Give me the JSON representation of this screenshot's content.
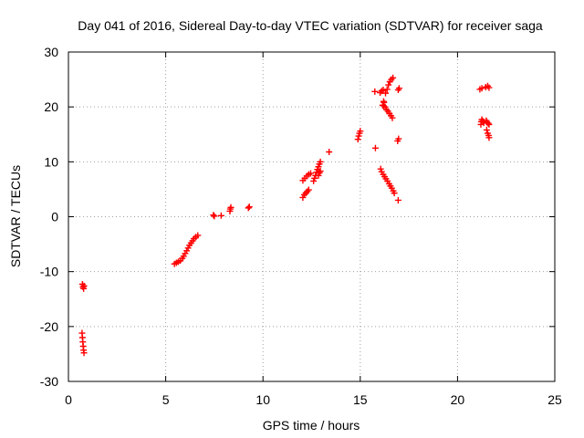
{
  "chart_data": {
    "type": "scatter",
    "title": "Day 041 of 2016, Sidereal Day-to-day VTEC variation (SDTVAR) for receiver saga",
    "xlabel": "GPS time / hours",
    "ylabel": "SDTVAR / TECUs",
    "xlim": [
      0,
      25
    ],
    "ylim": [
      -30,
      30
    ],
    "xticks": [
      0,
      5,
      10,
      15,
      20,
      25
    ],
    "yticks": [
      -30,
      -20,
      -10,
      0,
      10,
      20,
      30
    ],
    "grid": true,
    "marker": "+",
    "marker_color": "#ff0000",
    "series": [
      {
        "name": "SDTVAR",
        "points": [
          [
            0.72,
            -12.3
          ],
          [
            0.75,
            -12.8
          ],
          [
            0.78,
            -13.1
          ],
          [
            0.8,
            -12.6
          ],
          [
            0.7,
            -21.2
          ],
          [
            0.72,
            -22.0
          ],
          [
            0.74,
            -22.8
          ],
          [
            0.76,
            -23.6
          ],
          [
            0.78,
            -24.3
          ],
          [
            0.8,
            -24.8
          ],
          [
            5.45,
            -8.6
          ],
          [
            5.55,
            -8.4
          ],
          [
            5.65,
            -8.2
          ],
          [
            5.75,
            -8.0
          ],
          [
            5.85,
            -7.6
          ],
          [
            5.92,
            -7.2
          ],
          [
            6.0,
            -6.7
          ],
          [
            6.08,
            -6.2
          ],
          [
            6.15,
            -5.7
          ],
          [
            6.22,
            -5.2
          ],
          [
            6.3,
            -4.8
          ],
          [
            6.38,
            -4.4
          ],
          [
            6.45,
            -4.0
          ],
          [
            6.55,
            -3.7
          ],
          [
            6.65,
            -3.4
          ],
          [
            7.45,
            0.3
          ],
          [
            7.5,
            0.1
          ],
          [
            7.85,
            0.2
          ],
          [
            8.3,
            1.0
          ],
          [
            8.32,
            1.4
          ],
          [
            8.35,
            1.7
          ],
          [
            9.25,
            1.6
          ],
          [
            9.3,
            1.8
          ],
          [
            12.05,
            3.5
          ],
          [
            12.12,
            4.0
          ],
          [
            12.2,
            4.3
          ],
          [
            12.28,
            4.6
          ],
          [
            12.35,
            4.9
          ],
          [
            12.05,
            6.6
          ],
          [
            12.15,
            7.0
          ],
          [
            12.25,
            7.4
          ],
          [
            12.35,
            7.7
          ],
          [
            12.45,
            7.9
          ],
          [
            12.6,
            6.5
          ],
          [
            12.65,
            7.0
          ],
          [
            12.7,
            7.5
          ],
          [
            12.75,
            8.1
          ],
          [
            12.8,
            8.6
          ],
          [
            12.85,
            9.1
          ],
          [
            12.9,
            9.6
          ],
          [
            12.95,
            10.0
          ],
          [
            12.85,
            7.5
          ],
          [
            12.9,
            8.0
          ],
          [
            12.95,
            8.3
          ],
          [
            13.4,
            11.8
          ],
          [
            14.88,
            14.1
          ],
          [
            14.92,
            14.7
          ],
          [
            14.96,
            15.2
          ],
          [
            15.0,
            15.6
          ],
          [
            15.75,
            22.8
          ],
          [
            15.78,
            12.5
          ],
          [
            16.02,
            22.6
          ],
          [
            16.1,
            22.9
          ],
          [
            16.18,
            23.1
          ],
          [
            16.3,
            22.5
          ],
          [
            16.38,
            23.2
          ],
          [
            16.45,
            24.0
          ],
          [
            16.52,
            24.6
          ],
          [
            16.6,
            25.0
          ],
          [
            16.68,
            25.3
          ],
          [
            16.15,
            20.3
          ],
          [
            16.2,
            21.0
          ],
          [
            16.28,
            20.0
          ],
          [
            16.35,
            19.5
          ],
          [
            16.42,
            19.2
          ],
          [
            16.5,
            18.8
          ],
          [
            16.58,
            18.4
          ],
          [
            16.65,
            18.0
          ],
          [
            16.2,
            20.2
          ],
          [
            16.22,
            20.8
          ],
          [
            16.05,
            8.7
          ],
          [
            16.1,
            8.2
          ],
          [
            16.18,
            7.7
          ],
          [
            16.25,
            7.3
          ],
          [
            16.32,
            6.9
          ],
          [
            16.4,
            6.5
          ],
          [
            16.48,
            6.0
          ],
          [
            16.55,
            5.6
          ],
          [
            16.62,
            5.2
          ],
          [
            16.7,
            4.7
          ],
          [
            16.75,
            4.3
          ],
          [
            16.95,
            3.0
          ],
          [
            16.92,
            13.8
          ],
          [
            16.97,
            14.2
          ],
          [
            16.95,
            23.1
          ],
          [
            17.0,
            23.4
          ],
          [
            21.15,
            23.2
          ],
          [
            21.25,
            23.4
          ],
          [
            21.45,
            23.6
          ],
          [
            21.55,
            23.8
          ],
          [
            21.62,
            23.5
          ],
          [
            21.2,
            16.8
          ],
          [
            21.22,
            17.3
          ],
          [
            21.25,
            17.7
          ],
          [
            21.3,
            17.4
          ],
          [
            21.35,
            17.1
          ],
          [
            21.48,
            17.5
          ],
          [
            21.52,
            17.2
          ],
          [
            21.58,
            17.0
          ],
          [
            21.62,
            16.8
          ],
          [
            21.5,
            15.8
          ],
          [
            21.55,
            15.2
          ],
          [
            21.6,
            14.8
          ],
          [
            21.62,
            14.4
          ]
        ]
      }
    ]
  }
}
